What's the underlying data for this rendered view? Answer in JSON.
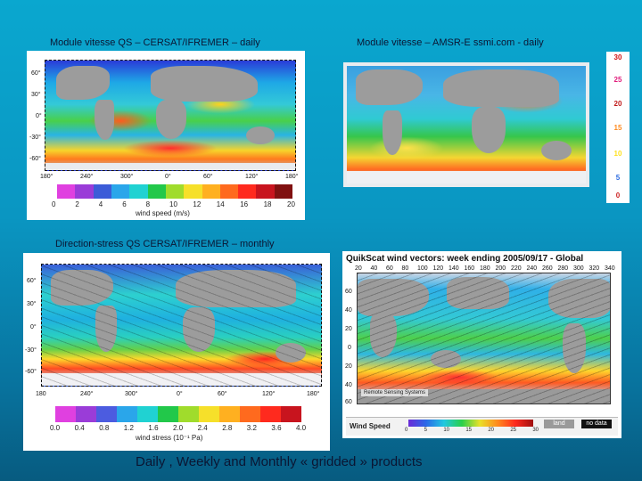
{
  "captions": {
    "qs_daily": "Module vitesse QS – CERSAT/IFREMER – daily",
    "amsr_daily": "Module vitesse – AMSR-E ssmi.com - daily",
    "stress_monthly": "Direction-stress QS CERSAT/IFREMER – monthly",
    "bottom": "Daily , Weekly and Monthly « gridded » products"
  },
  "qs_map": {
    "lat_ticks": [
      "60°",
      "30°",
      "0°",
      "-30°",
      "-60°"
    ],
    "lon_ticks": [
      "180°",
      "240°",
      "300°",
      "0°",
      "60°",
      "120°",
      "180°"
    ],
    "colorbar": {
      "colors": [
        "#e040e0",
        "#9a3cd8",
        "#3c5cd8",
        "#2aa6ea",
        "#20d2d2",
        "#22c84a",
        "#a0dc2c",
        "#f6e02a",
        "#ffb020",
        "#ff6a1e",
        "#ff2a1e",
        "#c8141e",
        "#801010"
      ],
      "ticks": [
        "0",
        "2",
        "4",
        "6",
        "8",
        "10",
        "12",
        "14",
        "16",
        "18",
        "20"
      ],
      "label": "wind speed (m/s)"
    }
  },
  "amsr_scale": {
    "values": [
      "30",
      "25",
      "20",
      "15",
      "10",
      "5",
      "0"
    ],
    "colors": [
      "#d01010",
      "#e01a7a",
      "#c01818",
      "#ff8a1e",
      "#ffe11e",
      "#2a6ae0",
      "#cc2222"
    ]
  },
  "stress_map": {
    "lat_ticks": [
      "60°",
      "30°",
      "0°",
      "-30°",
      "-60°"
    ],
    "lon_ticks": [
      "180",
      "240°",
      "300°",
      "0°",
      "60°",
      "120°",
      "180°"
    ],
    "colorbar": {
      "colors": [
        "#e040e0",
        "#9a3cd8",
        "#4c5ce0",
        "#2aa6ea",
        "#20d2d2",
        "#22c84a",
        "#a0dc2c",
        "#f6e02a",
        "#ffb020",
        "#ff6a1e",
        "#ff2a1e",
        "#c8141e"
      ],
      "ticks": [
        "0.0",
        "0.4",
        "0.8",
        "1.2",
        "1.6",
        "2.0",
        "2.4",
        "2.8",
        "3.2",
        "3.6",
        "4.0"
      ],
      "label": "wind stress (10⁻¹ Pa)"
    }
  },
  "weekly_map": {
    "title": "QuikScat wind vectors: week ending 2005/09/17 - Global",
    "lon_ticks": [
      "20",
      "40",
      "60",
      "80",
      "100",
      "120",
      "140",
      "160",
      "180",
      "200",
      "220",
      "240",
      "260",
      "280",
      "300",
      "320",
      "340"
    ],
    "lat_ticks": [
      "60",
      "40",
      "20",
      "0",
      "20",
      "40",
      "60"
    ],
    "legend_label": "Wind Speed",
    "legend_ticks": [
      "0",
      "5",
      "10",
      "15",
      "20",
      "25",
      "30"
    ],
    "land_label": "land",
    "nodata_label": "no data",
    "credit": "Remote Sensing Systems"
  }
}
